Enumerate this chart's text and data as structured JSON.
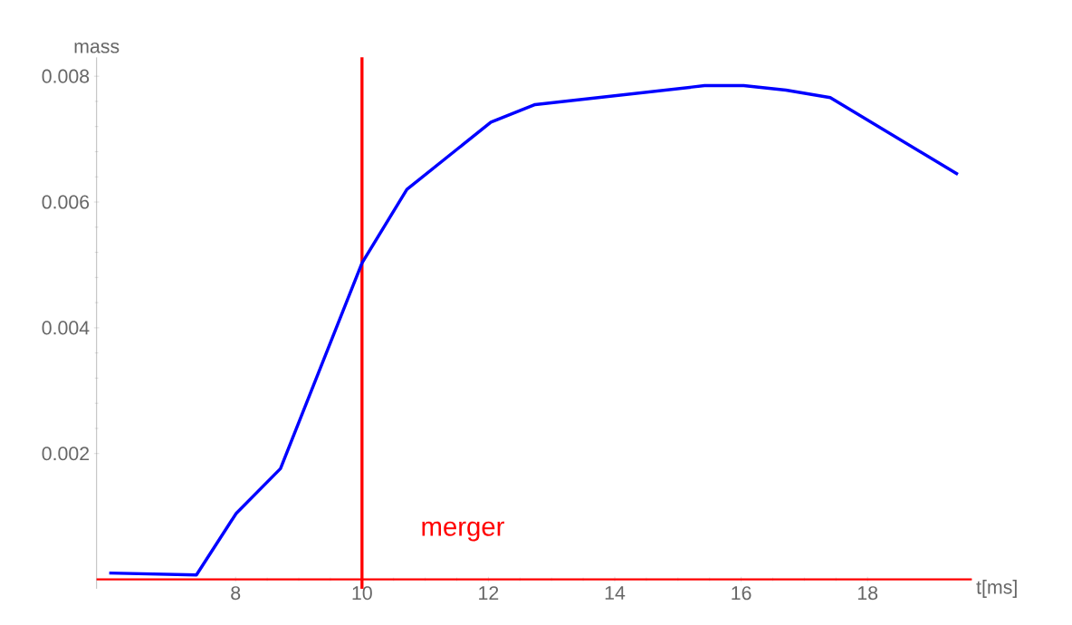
{
  "chart_data": {
    "type": "line",
    "xlabel": "t[ms]",
    "ylabel": "mass",
    "x": [
      6.0,
      7.38,
      8.01,
      8.71,
      10.0,
      10.71,
      12.04,
      12.74,
      15.42,
      16.04,
      16.71,
      17.41,
      19.43
    ],
    "series": [
      {
        "color": "#0000ff",
        "values": [
          0.0001,
          7e-05,
          0.00105,
          0.00176,
          0.00503,
          0.0062,
          0.00727,
          0.00755,
          0.00785,
          0.00785,
          0.00778,
          0.00766,
          0.00644
        ]
      }
    ],
    "xlim": [
      5.8,
      19.65
    ],
    "ylim": [
      -0.00015,
      0.0083
    ],
    "xticks": [
      8,
      10,
      12,
      14,
      16,
      18
    ],
    "yticks": [
      0.002,
      0.004,
      0.006,
      0.008
    ],
    "ref_lines": [
      {
        "axis": "x",
        "value": 10,
        "label": "merger",
        "color": "#ff0000"
      },
      {
        "axis": "y",
        "value": 0,
        "color": "#ff0000"
      }
    ]
  }
}
